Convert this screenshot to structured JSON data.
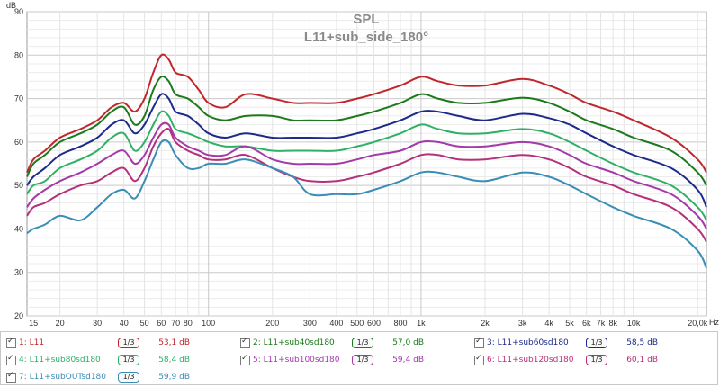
{
  "chart_data": {
    "type": "line",
    "title": "SPL",
    "subtitle": "L11+sub_side_180°",
    "ylabel": "dB",
    "xlabel": "Hz",
    "xscale": "log",
    "xlim": [
      14,
      22000
    ],
    "ylim": [
      20,
      90
    ],
    "yticks": [
      20,
      30,
      40,
      50,
      60,
      70,
      80,
      90
    ],
    "xticks": [
      {
        "v": 15,
        "label": "15"
      },
      {
        "v": 20,
        "label": "20"
      },
      {
        "v": 30,
        "label": "30"
      },
      {
        "v": 40,
        "label": "40"
      },
      {
        "v": 50,
        "label": "50"
      },
      {
        "v": 60,
        "label": "60"
      },
      {
        "v": 70,
        "label": "70"
      },
      {
        "v": 80,
        "label": "80"
      },
      {
        "v": 100,
        "label": "100"
      },
      {
        "v": 200,
        "label": "200"
      },
      {
        "v": 300,
        "label": "300"
      },
      {
        "v": 400,
        "label": "400"
      },
      {
        "v": 500,
        "label": "500"
      },
      {
        "v": 600,
        "label": "600"
      },
      {
        "v": 800,
        "label": "800"
      },
      {
        "v": 1000,
        "label": "1k"
      },
      {
        "v": 2000,
        "label": "2k"
      },
      {
        "v": 3000,
        "label": "3k"
      },
      {
        "v": 4000,
        "label": "4k"
      },
      {
        "v": 5000,
        "label": "5k"
      },
      {
        "v": 6000,
        "label": "6k"
      },
      {
        "v": 7000,
        "label": "7k"
      },
      {
        "v": 8000,
        "label": "8k"
      },
      {
        "v": 10000,
        "label": "10k"
      },
      {
        "v": 20000,
        "label": "20,0k"
      }
    ],
    "grid": true,
    "legend_position": "bottom",
    "x": [
      14,
      15,
      17,
      20,
      25,
      30,
      35,
      40,
      45,
      50,
      55,
      60,
      65,
      70,
      80,
      90,
      100,
      120,
      150,
      200,
      250,
      300,
      400,
      500,
      600,
      800,
      1000,
      1200,
      1500,
      2000,
      3000,
      4000,
      5000,
      6000,
      8000,
      10000,
      15000,
      20000,
      22000
    ],
    "series": [
      {
        "index": "1",
        "name": "L11",
        "color": "#c0272d",
        "smoothing": "1/3",
        "value_label": "53,1 dB",
        "values": [
          53,
          56,
          58,
          61,
          63,
          65,
          68,
          69,
          67,
          70,
          76,
          80,
          79,
          76,
          75,
          72,
          69,
          68,
          71,
          70,
          69,
          69,
          69,
          70,
          71,
          73,
          75,
          74,
          73,
          73,
          74.5,
          73,
          71,
          69,
          67,
          65,
          61,
          56,
          53
        ]
      },
      {
        "index": "2",
        "name": "L11+sub40sd180",
        "color": "#1b7a1b",
        "smoothing": "1/3",
        "value_label": "57,0 dB",
        "values": [
          52,
          55,
          57,
          60,
          62,
          64,
          67,
          68,
          64,
          66,
          72,
          75,
          74,
          71,
          70,
          68,
          66,
          65,
          66,
          66,
          65,
          65,
          65,
          66,
          67,
          69,
          71,
          70,
          69,
          69,
          70.2,
          69,
          67,
          65,
          63,
          61,
          58,
          53,
          50
        ]
      },
      {
        "index": "3",
        "name": "L11+sub60sd180",
        "color": "#1c2a8a",
        "smoothing": "1/3",
        "value_label": "58,5 dB",
        "values": [
          50,
          52,
          54,
          57,
          59,
          61,
          64,
          65,
          62,
          64,
          68,
          71,
          70,
          67,
          66,
          64,
          62,
          61,
          62,
          61,
          61,
          61,
          61,
          62,
          63,
          65,
          67,
          67,
          66,
          65,
          66.5,
          65.5,
          64,
          62,
          59,
          57,
          54,
          49,
          45
        ]
      },
      {
        "index": "4",
        "name": "L11+sub80sd180",
        "color": "#2fb066",
        "smoothing": "1/3",
        "value_label": "58,4 dB",
        "values": [
          48,
          50,
          51,
          54,
          56,
          58,
          61,
          62,
          58,
          60,
          64,
          67,
          66,
          63,
          62,
          61,
          60,
          59,
          59,
          58,
          58,
          58,
          58,
          59,
          60,
          62,
          64,
          63,
          62,
          62,
          63,
          62,
          60,
          58,
          55,
          53,
          50,
          45,
          42
        ]
      },
      {
        "index": "5",
        "name": "L11+sub100sd180",
        "color": "#a23aa8",
        "smoothing": "1/3",
        "value_label": "59,4 dB",
        "values": [
          45,
          47,
          49,
          51,
          53,
          55,
          57,
          58,
          55,
          57,
          61,
          64,
          64,
          61,
          59,
          58,
          57,
          57,
          59,
          56,
          55,
          55,
          55,
          56,
          57,
          58,
          60,
          60,
          59,
          59,
          60,
          59,
          57,
          55,
          53,
          51,
          48,
          43,
          40
        ]
      },
      {
        "index": "6",
        "name": "L11+sub120sd180",
        "color": "#b5307a",
        "smoothing": "1/3",
        "value_label": "60,1 dB",
        "values": [
          43,
          45,
          46,
          48,
          50,
          51,
          53,
          54,
          51,
          54,
          59,
          62,
          63,
          60,
          58,
          57,
          56,
          56,
          57,
          54,
          52,
          51,
          51,
          52,
          53,
          55,
          57,
          57,
          56,
          56,
          57,
          56,
          54,
          52,
          50,
          48,
          45,
          40,
          37
        ]
      },
      {
        "index": "7",
        "name": "L11+subOUTsd180",
        "color": "#3a8db5",
        "smoothing": "1/3",
        "value_label": "59,9 dB",
        "values": [
          39,
          40,
          41,
          43,
          42,
          45,
          48,
          49,
          47,
          51,
          56,
          60,
          60,
          57,
          54,
          54,
          55,
          55,
          56,
          54,
          52,
          48,
          48,
          48,
          49,
          51,
          53,
          53,
          52,
          51,
          53,
          52,
          50,
          48,
          45,
          43,
          40,
          35,
          31
        ]
      }
    ]
  }
}
